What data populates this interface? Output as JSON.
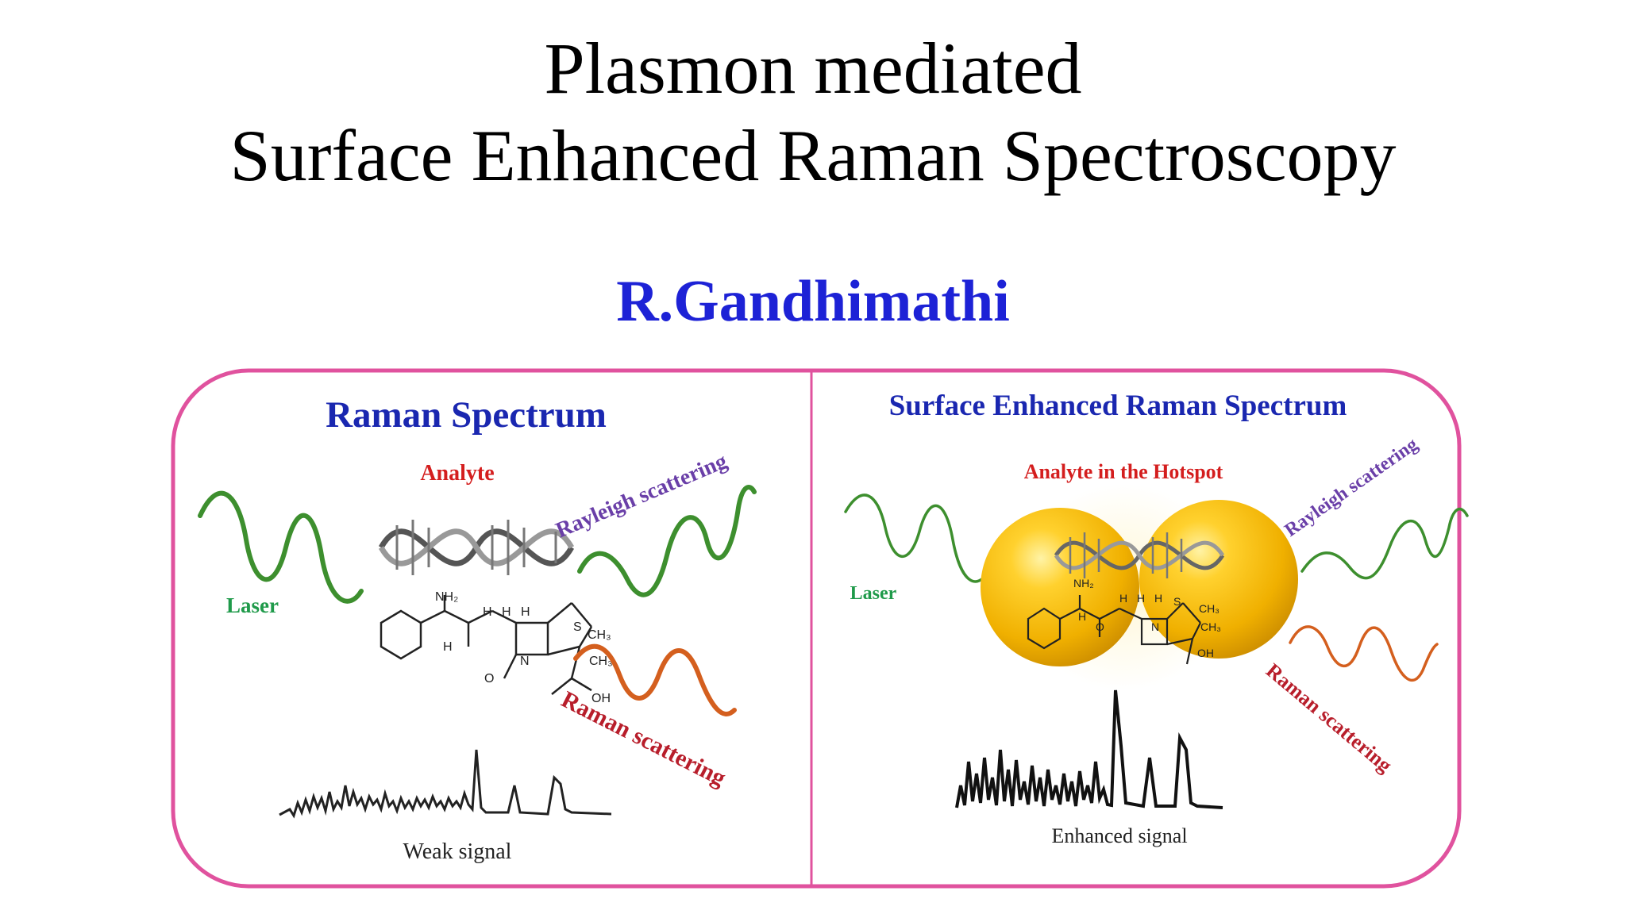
{
  "slide": {
    "title_line1": "Plasmon mediated",
    "title_line2": "Surface Enhanced Raman Spectroscopy",
    "author": "R.Gandhimathi"
  },
  "left_panel": {
    "heading": "Raman Spectrum",
    "analyte_label": "Analyte",
    "laser_label": "Laser",
    "rayleigh_label": "Rayleigh scattering",
    "raman_label": "Raman scattering",
    "signal_label": "Weak signal"
  },
  "right_panel": {
    "heading": "Surface Enhanced Raman Spectrum",
    "analyte_label": "Analyte in the Hotspot",
    "laser_label": "Laser",
    "rayleigh_label": "Rayleigh scattering",
    "raman_label": "Raman scattering",
    "signal_label": "Enhanced signal"
  },
  "molecule_labels": {
    "nh2": "NH₂",
    "h": "H",
    "s": "S",
    "ch3": "CH₃",
    "n": "N",
    "o": "O",
    "oh": "OH"
  },
  "colors": {
    "frame": "#e0529e",
    "heading": "#1a27b0",
    "analyte": "#d41e1e",
    "laser_text": "#1f9a4a",
    "laser_wave": "#3d8f2e",
    "rayleigh": "#6a3fa8",
    "raman_text": "#b81e2b",
    "raman_wave": "#d45f1e",
    "gold": "#f0b400",
    "author": "#1d22d6"
  }
}
